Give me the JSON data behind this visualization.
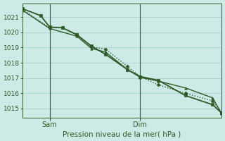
{
  "bg_color": "#ceeae6",
  "grid_color": "#aad4cc",
  "line_color": "#2d5a27",
  "tick_color": "#2d5a27",
  "xlabel": "Pression niveau de la mer( hPa )",
  "xlabel_color": "#2d5a27",
  "ylim": [
    1014.4,
    1021.9
  ],
  "yticks": [
    1015,
    1016,
    1017,
    1018,
    1019,
    1020,
    1021
  ],
  "xlim": [
    0,
    11
  ],
  "sam_x": 1.5,
  "dim_x": 6.5,
  "xtick_positions": [
    1.5,
    6.5
  ],
  "xtick_labels": [
    "Sam",
    "Dim"
  ],
  "series": [
    {
      "x": [
        0,
        1.0,
        1.5,
        2.2,
        3.0,
        3.8,
        4.6,
        5.8,
        6.5,
        7.5,
        9.0,
        10.5,
        11.0
      ],
      "y": [
        1021.55,
        1021.1,
        1020.35,
        1020.3,
        1019.85,
        1019.1,
        1018.55,
        1017.55,
        1017.1,
        1016.85,
        1015.85,
        1015.25,
        1014.7
      ],
      "lw": 1.3,
      "ms": 2.8,
      "marker": "s",
      "linestyle": "solid"
    },
    {
      "x": [
        0,
        1.5,
        2.2,
        3.0,
        3.8,
        4.6,
        5.8,
        6.5,
        7.5,
        9.0,
        10.5,
        11.0
      ],
      "y": [
        1021.5,
        1020.3,
        1020.3,
        1019.85,
        1019.05,
        1018.9,
        1017.75,
        1017.1,
        1016.55,
        1016.0,
        1015.5,
        1014.72
      ],
      "lw": 1.0,
      "ms": 2.5,
      "marker": "D",
      "linestyle": "dotted"
    },
    {
      "x": [
        0,
        1.5,
        3.0,
        3.8,
        4.6,
        5.8,
        6.5,
        7.5,
        9.0,
        10.5,
        11.0
      ],
      "y": [
        1021.45,
        1020.25,
        1019.75,
        1018.95,
        1018.7,
        1017.55,
        1017.05,
        1016.8,
        1016.35,
        1015.7,
        1014.68
      ],
      "lw": 1.0,
      "ms": 2.5,
      "marker": "^",
      "linestyle": "solid"
    }
  ]
}
